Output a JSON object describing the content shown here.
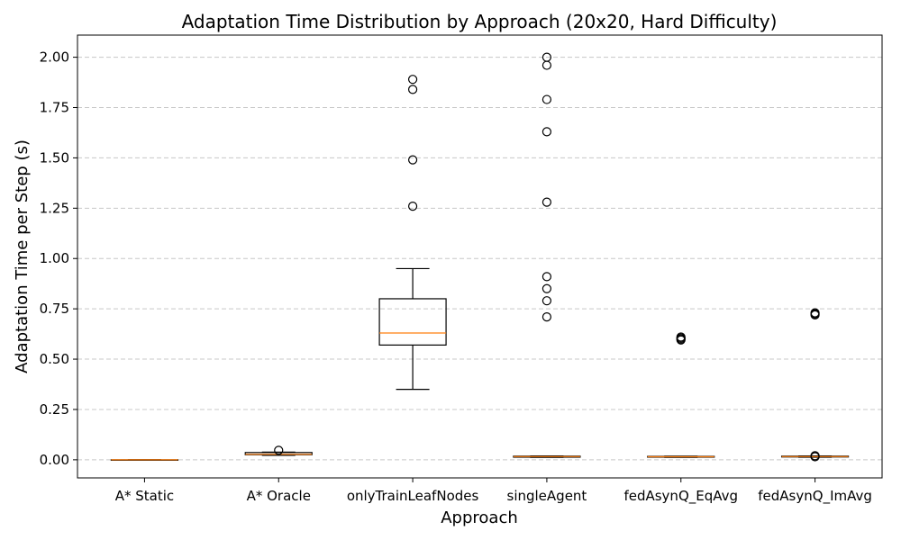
{
  "chart_data": {
    "type": "box",
    "title": "Adaptation Time Distribution by Approach (20x20, Hard Difficulty)",
    "xlabel": "Approach",
    "ylabel": "Adaptation Time per Step (s)",
    "ylim": [
      -0.09,
      2.11
    ],
    "yticks": [
      0.0,
      0.25,
      0.5,
      0.75,
      1.0,
      1.25,
      1.5,
      1.75,
      2.0
    ],
    "ytick_labels": [
      "0.00",
      "0.25",
      "0.50",
      "0.75",
      "1.00",
      "1.25",
      "1.50",
      "1.75",
      "2.00"
    ],
    "grid": "y-dashed",
    "colors": {
      "box": "#000000",
      "median": "#ff7f0e",
      "grid": "#c8c8c8"
    },
    "categories": [
      "A* Static",
      "A* Oracle",
      "onlyTrainLeafNodes",
      "singleAgent",
      "fedAsynQ_EqAvg",
      "fedAsynQ_ImAvg"
    ],
    "boxes": [
      {
        "whislo": 0.0,
        "q1": 0.0,
        "med": 0.0,
        "q3": 0.0,
        "whishi": 0.0,
        "fliers": []
      },
      {
        "whislo": 0.022,
        "q1": 0.025,
        "med": 0.027,
        "q3": 0.036,
        "whishi": 0.038,
        "fliers": [
          0.047
        ]
      },
      {
        "whislo": 0.35,
        "q1": 0.57,
        "med": 0.63,
        "q3": 0.8,
        "whishi": 0.95,
        "fliers": [
          1.26,
          1.49,
          1.84,
          1.89
        ]
      },
      {
        "whislo": 0.012,
        "q1": 0.013,
        "med": 0.016,
        "q3": 0.018,
        "whishi": 0.019,
        "fliers": [
          0.71,
          0.79,
          0.85,
          0.91,
          1.28,
          1.63,
          1.79,
          1.96,
          2.0
        ]
      },
      {
        "whislo": 0.012,
        "q1": 0.013,
        "med": 0.015,
        "q3": 0.017,
        "whishi": 0.018,
        "fliers": [
          0.595,
          0.6,
          0.605,
          0.61
        ]
      },
      {
        "whislo": 0.013,
        "q1": 0.014,
        "med": 0.016,
        "q3": 0.018,
        "whishi": 0.019,
        "fliers": [
          0.015,
          0.02,
          0.72,
          0.725,
          0.73
        ]
      }
    ]
  }
}
